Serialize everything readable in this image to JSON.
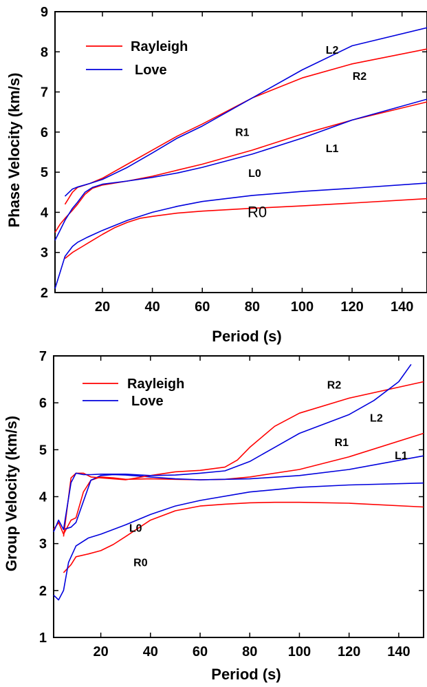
{
  "colors": {
    "rayleigh": "#ff0000",
    "love": "#0000dd"
  },
  "chart_data": [
    {
      "type": "line",
      "xlabel": "Period (s)",
      "ylabel": "Phase Velocity (km/s)",
      "xlim": [
        1,
        150
      ],
      "ylim": [
        2,
        9
      ],
      "xticks": [
        "20",
        "40",
        "60",
        "80",
        "100",
        "120",
        "140"
      ],
      "yticks": [
        "2",
        "3",
        "4",
        "5",
        "6",
        "7",
        "8",
        "9"
      ],
      "grid": false,
      "legend": {
        "position": "top-left",
        "entries": [
          "Rayleigh",
          "Love"
        ]
      },
      "series": [
        {
          "name": "R0",
          "label": "R0",
          "wave": "rayleigh",
          "x": [
            5,
            8,
            12,
            16,
            20,
            25,
            30,
            35,
            40,
            50,
            60,
            80,
            100,
            120,
            150
          ],
          "y": [
            2.85,
            3.0,
            3.15,
            3.3,
            3.45,
            3.62,
            3.75,
            3.85,
            3.9,
            3.98,
            4.03,
            4.1,
            4.16,
            4.23,
            4.34
          ]
        },
        {
          "name": "L0",
          "label": "L0",
          "wave": "love",
          "x": [
            1,
            3,
            5,
            8,
            10,
            14,
            20,
            30,
            40,
            50,
            60,
            80,
            100,
            120,
            150
          ],
          "y": [
            2.1,
            2.5,
            2.9,
            3.15,
            3.25,
            3.38,
            3.55,
            3.8,
            4.0,
            4.15,
            4.27,
            4.42,
            4.52,
            4.6,
            4.73
          ]
        },
        {
          "name": "R1",
          "label": "R1",
          "wave": "rayleigh",
          "x": [
            1,
            3,
            5,
            8,
            10,
            13,
            16,
            20,
            30,
            40,
            50,
            60,
            80,
            100,
            120,
            150
          ],
          "y": [
            3.5,
            3.7,
            3.85,
            4.05,
            4.2,
            4.45,
            4.6,
            4.68,
            4.78,
            4.9,
            5.05,
            5.2,
            5.55,
            5.95,
            6.3,
            6.75
          ]
        },
        {
          "name": "L1",
          "label": "L1",
          "wave": "love",
          "x": [
            1,
            3,
            5,
            8,
            10,
            13,
            16,
            20,
            30,
            40,
            50,
            60,
            80,
            100,
            120,
            150
          ],
          "y": [
            3.3,
            3.55,
            3.8,
            4.1,
            4.25,
            4.5,
            4.62,
            4.7,
            4.78,
            4.87,
            4.98,
            5.12,
            5.45,
            5.85,
            6.3,
            6.82
          ]
        },
        {
          "name": "R2",
          "label": "R2",
          "wave": "rayleigh",
          "x": [
            5,
            8,
            10,
            15,
            20,
            30,
            40,
            50,
            60,
            80,
            100,
            120,
            150
          ],
          "y": [
            4.2,
            4.5,
            4.62,
            4.72,
            4.85,
            5.2,
            5.55,
            5.9,
            6.2,
            6.85,
            7.35,
            7.7,
            8.07
          ]
        },
        {
          "name": "L2",
          "label": "L2",
          "wave": "love",
          "x": [
            5,
            8,
            10,
            15,
            20,
            30,
            40,
            50,
            60,
            80,
            100,
            120,
            150
          ],
          "y": [
            4.4,
            4.58,
            4.63,
            4.72,
            4.82,
            5.12,
            5.48,
            5.85,
            6.15,
            6.85,
            7.55,
            8.15,
            8.6
          ]
        }
      ],
      "annotations": [
        {
          "text": "L2",
          "x": 112,
          "y": 7.95
        },
        {
          "text": "R2",
          "x": 123,
          "y": 7.3
        },
        {
          "text": "R1",
          "x": 76,
          "y": 5.9
        },
        {
          "text": "L1",
          "x": 112,
          "y": 5.5
        },
        {
          "text": "L0",
          "x": 81,
          "y": 4.88
        },
        {
          "text": "R0",
          "x": 82,
          "y": 3.88
        }
      ]
    },
    {
      "type": "line",
      "xlabel": "Period (s)",
      "ylabel": "Group Velocity (km/s)",
      "xlim": [
        1,
        150
      ],
      "ylim": [
        1,
        7
      ],
      "xticks": [
        "20",
        "40",
        "60",
        "80",
        "100",
        "120",
        "140"
      ],
      "yticks": [
        "1",
        "2",
        "3",
        "4",
        "5",
        "6",
        "7"
      ],
      "grid": false,
      "legend": {
        "position": "top-left",
        "entries": [
          "Rayleigh",
          "Love"
        ]
      },
      "series": [
        {
          "name": "R0",
          "label": "R0",
          "wave": "rayleigh",
          "x": [
            5,
            8,
            10,
            15,
            20,
            25,
            30,
            40,
            50,
            60,
            70,
            80,
            90,
            100,
            120,
            150
          ],
          "y": [
            2.38,
            2.55,
            2.72,
            2.78,
            2.85,
            2.98,
            3.15,
            3.5,
            3.7,
            3.8,
            3.84,
            3.87,
            3.88,
            3.88,
            3.86,
            3.78
          ]
        },
        {
          "name": "L0",
          "label": "L0",
          "wave": "love",
          "x": [
            1,
            3,
            5,
            7,
            10,
            15,
            20,
            30,
            40,
            50,
            60,
            80,
            100,
            120,
            150
          ],
          "y": [
            1.9,
            1.8,
            2.0,
            2.6,
            2.95,
            3.12,
            3.2,
            3.4,
            3.62,
            3.8,
            3.92,
            4.1,
            4.2,
            4.25,
            4.29
          ]
        },
        {
          "name": "R1",
          "label": "R1",
          "wave": "rayleigh",
          "x": [
            1,
            3,
            5,
            8,
            10,
            13,
            16,
            20,
            25,
            30,
            40,
            50,
            60,
            70,
            80,
            100,
            120,
            150
          ],
          "y": [
            3.3,
            3.45,
            3.2,
            3.5,
            3.55,
            4.1,
            4.35,
            4.42,
            4.4,
            4.37,
            4.38,
            4.37,
            4.36,
            4.37,
            4.42,
            4.58,
            4.85,
            5.35
          ]
        },
        {
          "name": "L1",
          "label": "L1",
          "wave": "love",
          "x": [
            1,
            3,
            5,
            8,
            10,
            13,
            16,
            20,
            25,
            30,
            40,
            50,
            60,
            70,
            80,
            100,
            120,
            150
          ],
          "y": [
            3.25,
            3.5,
            3.3,
            3.35,
            3.45,
            3.9,
            4.35,
            4.45,
            4.47,
            4.46,
            4.42,
            4.38,
            4.36,
            4.37,
            4.38,
            4.45,
            4.58,
            4.87
          ]
        },
        {
          "name": "R2",
          "label": "R2",
          "wave": "rayleigh",
          "x": [
            5,
            8,
            10,
            13,
            16,
            20,
            30,
            40,
            50,
            60,
            70,
            75,
            80,
            90,
            100,
            120,
            150
          ],
          "y": [
            3.15,
            4.4,
            4.5,
            4.5,
            4.42,
            4.4,
            4.36,
            4.45,
            4.53,
            4.56,
            4.63,
            4.78,
            5.05,
            5.5,
            5.78,
            6.1,
            6.45
          ]
        },
        {
          "name": "L2",
          "label": "L2",
          "wave": "love",
          "x": [
            5,
            8,
            10,
            13,
            16,
            20,
            30,
            40,
            50,
            60,
            70,
            80,
            90,
            100,
            120,
            130,
            140,
            145
          ],
          "y": [
            3.3,
            4.3,
            4.5,
            4.47,
            4.47,
            4.48,
            4.48,
            4.45,
            4.46,
            4.5,
            4.55,
            4.75,
            5.05,
            5.35,
            5.75,
            6.05,
            6.45,
            6.82
          ]
        }
      ],
      "annotations": [
        {
          "text": "R2",
          "x": 114,
          "y": 6.3
        },
        {
          "text": "L2",
          "x": 131,
          "y": 5.6
        },
        {
          "text": "R1",
          "x": 117,
          "y": 5.08
        },
        {
          "text": "L1",
          "x": 141,
          "y": 4.8
        },
        {
          "text": "L0",
          "x": 34,
          "y": 3.25
        },
        {
          "text": "R0",
          "x": 36,
          "y": 2.52
        }
      ]
    }
  ]
}
